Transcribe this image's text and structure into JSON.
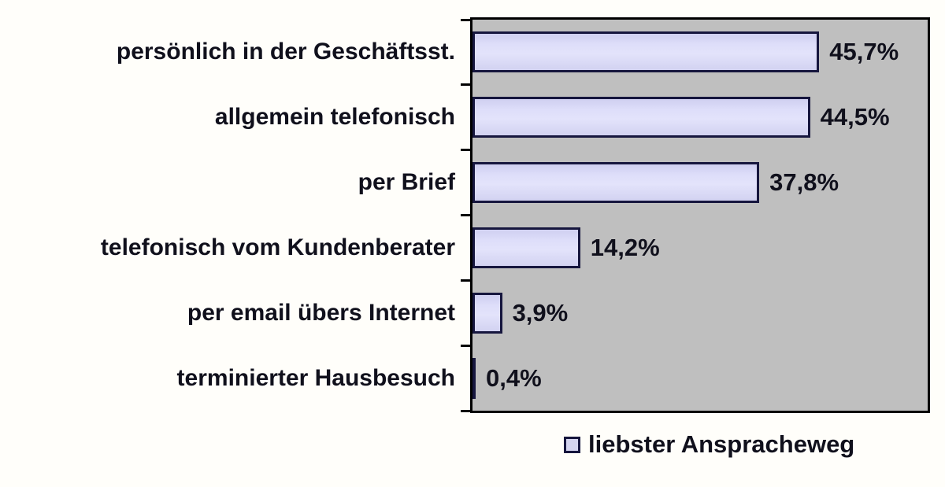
{
  "chart_data": {
    "type": "bar",
    "orientation": "horizontal",
    "title": "",
    "categories": [
      "persönlich in der Geschäftsst.",
      "allgemein telefonisch",
      "per Brief",
      "telefonisch vom Kundenberater",
      "per email übers Internet",
      "terminierter Hausbesuch"
    ],
    "values": [
      45.7,
      44.5,
      37.8,
      14.2,
      3.9,
      0.4
    ],
    "value_labels": [
      "45,7%",
      "44,5%",
      "37,8%",
      "14,2%",
      "3,9%",
      "0,4%"
    ],
    "xlabel": "",
    "ylabel": "",
    "xlim": [
      0,
      60
    ],
    "grid": false,
    "axis_tick_count": 7,
    "legend_position": "bottom",
    "legend": [
      {
        "label": "liebster Anspracheweg"
      }
    ],
    "colors": {
      "plot_background": "#bfbfbf",
      "plot_border": "#000000",
      "bar_fill": "#d8d8f6",
      "bar_border": "#16163e",
      "text": "#10101c",
      "page_background": "#fffefa"
    }
  }
}
